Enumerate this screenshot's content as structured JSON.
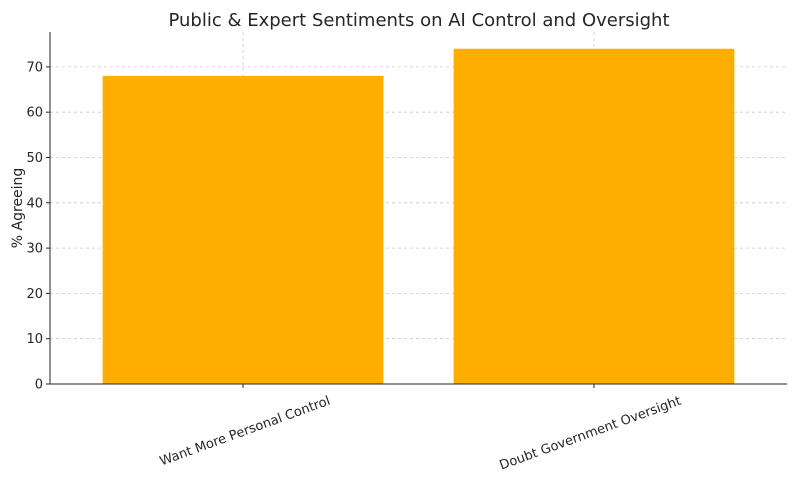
{
  "chart_data": {
    "type": "bar",
    "title": "Public & Expert Sentiments on AI Control and Oversight",
    "xlabel": "",
    "ylabel": "% Agreeing",
    "categories": [
      "Want More Personal Control",
      "Doubt Government Oversight"
    ],
    "values": [
      68,
      74
    ],
    "ylim": [
      0,
      77.7
    ],
    "yticks": [
      0,
      10,
      20,
      30,
      40,
      50,
      60,
      70
    ],
    "grid": true,
    "bar_color": "#ffae00"
  }
}
